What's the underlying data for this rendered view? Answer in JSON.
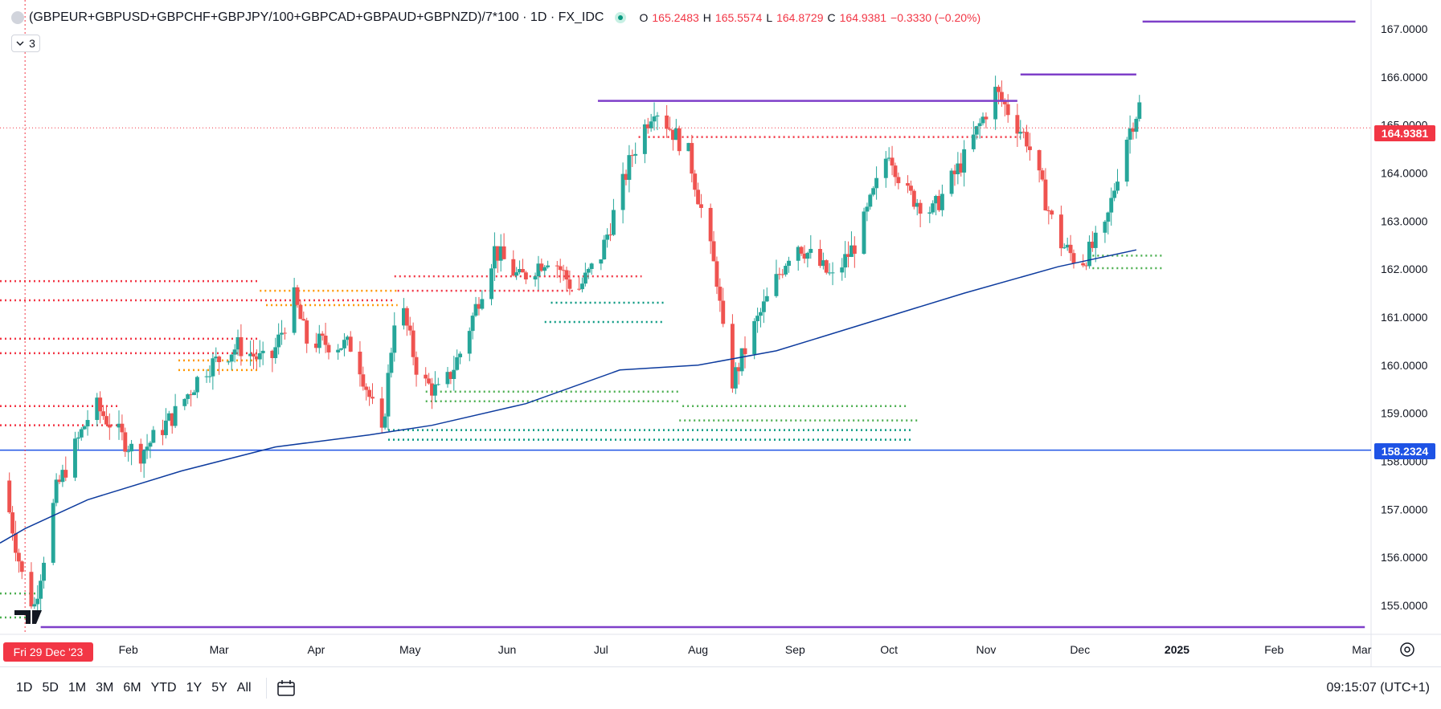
{
  "header": {
    "symbol": "(GBPEUR+GBPUSD+GBPCHF+GBPJPY/100+GBPCAD+GBPAUD+GBPNZD)/7*100 · 1D · FX_IDC",
    "ohlc": [
      {
        "key": "O",
        "value": "165.2483"
      },
      {
        "key": "H",
        "value": "165.5574"
      },
      {
        "key": "L",
        "value": "164.8729"
      },
      {
        "key": "C",
        "value": "164.9381"
      }
    ],
    "change": "−0.3330 (−0.20%)",
    "indicator_count": "3"
  },
  "price_tags": {
    "last": "164.9381",
    "hline": "158.2324"
  },
  "crosshair_date": "Fri 29 Dec '23",
  "time_axis": [
    {
      "label": "Feb",
      "day": 33
    },
    {
      "label": "Mar",
      "day": 62
    },
    {
      "label": "Apr",
      "day": 93
    },
    {
      "label": "May",
      "day": 123
    },
    {
      "label": "Jun",
      "day": 154
    },
    {
      "label": "Jul",
      "day": 184
    },
    {
      "label": "Aug",
      "day": 215
    },
    {
      "label": "Sep",
      "day": 246
    },
    {
      "label": "Oct",
      "day": 276
    },
    {
      "label": "Nov",
      "day": 307
    },
    {
      "label": "Dec",
      "day": 337
    },
    {
      "label": "2025",
      "day": 368
    },
    {
      "label": "Feb",
      "day": 399
    },
    {
      "label": "Mar",
      "day": 427
    }
  ],
  "price_axis": [
    "167.0000",
    "166.0000",
    "165.0000",
    "164.0000",
    "163.0000",
    "162.0000",
    "161.0000",
    "160.0000",
    "159.0000",
    "158.0000",
    "157.0000",
    "156.0000",
    "155.0000"
  ],
  "timeframes": [
    "1D",
    "5D",
    "1M",
    "3M",
    "6M",
    "YTD",
    "1Y",
    "5Y",
    "All"
  ],
  "clock": "09:15:07 (UTC+1)",
  "colors": {
    "up": "#26a69a",
    "down": "#ef5350",
    "ma": "#0d3b9e",
    "hline": "#1e53e5",
    "level": "#7e3fc9",
    "last_price": "#f23645"
  },
  "chart_data": {
    "type": "candlestick",
    "x_unit": "days since 2023-12-29",
    "ylim": [
      154.4,
      167.6
    ],
    "xlim": [
      -8,
      430
    ],
    "last_price": 164.9381,
    "last_day": 357,
    "anchors": [
      [
        -7,
        157.6
      ],
      [
        0,
        155.3
      ],
      [
        3,
        155.0
      ],
      [
        10,
        157.4
      ],
      [
        22,
        159.2
      ],
      [
        36,
        158.1
      ],
      [
        48,
        159.0
      ],
      [
        57,
        159.9
      ],
      [
        68,
        160.4
      ],
      [
        78,
        160.0
      ],
      [
        86,
        161.4
      ],
      [
        90,
        160.5
      ],
      [
        105,
        160.4
      ],
      [
        114,
        158.5
      ],
      [
        119,
        161.6
      ],
      [
        126,
        159.7
      ],
      [
        133,
        159.4
      ],
      [
        140,
        160.4
      ],
      [
        150,
        162.4
      ],
      [
        158,
        161.8
      ],
      [
        168,
        162.3
      ],
      [
        176,
        161.5
      ],
      [
        184,
        162.3
      ],
      [
        194,
        164.4
      ],
      [
        201,
        165.4
      ],
      [
        212,
        164.4
      ],
      [
        221,
        161.8
      ],
      [
        225,
        159.5
      ],
      [
        233,
        160.8
      ],
      [
        246,
        162.6
      ],
      [
        258,
        161.8
      ],
      [
        266,
        162.6
      ],
      [
        276,
        164.5
      ],
      [
        281,
        163.6
      ],
      [
        290,
        163.2
      ],
      [
        300,
        164.3
      ],
      [
        310,
        165.7
      ],
      [
        320,
        164.7
      ],
      [
        330,
        162.6
      ],
      [
        337,
        162.1
      ],
      [
        345,
        162.8
      ],
      [
        351,
        164.6
      ],
      [
        356,
        165.4
      ],
      [
        357,
        164.94
      ]
    ],
    "ma200": [
      [
        -8,
        156.3
      ],
      [
        0,
        156.6
      ],
      [
        20,
        157.2
      ],
      [
        50,
        157.8
      ],
      [
        80,
        158.3
      ],
      [
        110,
        158.55
      ],
      [
        130,
        158.75
      ],
      [
        160,
        159.2
      ],
      [
        190,
        159.9
      ],
      [
        215,
        160.0
      ],
      [
        240,
        160.3
      ],
      [
        270,
        160.9
      ],
      [
        300,
        161.5
      ],
      [
        330,
        162.05
      ],
      [
        355,
        162.4
      ]
    ],
    "resistance_levels": [
      {
        "d1": 183,
        "d2": 317,
        "p": 165.5
      },
      {
        "d1": 318,
        "d2": 355,
        "p": 166.05
      },
      {
        "d1": 357,
        "d2": 425,
        "p": 167.15
      },
      {
        "d1": 5,
        "d2": 428,
        "p": 154.55
      }
    ],
    "horizontal_line": 158.2324,
    "dotted_levels": [
      {
        "d1": -8,
        "d2": 75,
        "p": 161.75,
        "c": "red"
      },
      {
        "d1": -8,
        "d2": 118,
        "p": 161.35,
        "c": "red"
      },
      {
        "d1": -8,
        "d2": 75,
        "p": 160.55,
        "c": "red"
      },
      {
        "d1": -8,
        "d2": 75,
        "p": 160.25,
        "c": "red"
      },
      {
        "d1": -8,
        "d2": 30,
        "p": 159.15,
        "c": "red"
      },
      {
        "d1": -8,
        "d2": 30,
        "p": 158.75,
        "c": "red"
      },
      {
        "d1": 75,
        "d2": 119,
        "p": 161.55,
        "c": "orange"
      },
      {
        "d1": 77,
        "d2": 119,
        "p": 161.25,
        "c": "orange"
      },
      {
        "d1": 49,
        "d2": 75,
        "p": 160.1,
        "c": "orange"
      },
      {
        "d1": 49,
        "d2": 75,
        "p": 159.9,
        "c": "orange"
      },
      {
        "d1": 118,
        "d2": 197,
        "p": 161.85,
        "c": "red"
      },
      {
        "d1": 119,
        "d2": 176,
        "p": 161.55,
        "c": "red"
      },
      {
        "d1": 196,
        "d2": 318,
        "p": 164.75,
        "c": "red"
      },
      {
        "d1": 168,
        "d2": 204,
        "p": 161.3,
        "c": "teal"
      },
      {
        "d1": 166,
        "d2": 204,
        "p": 160.9,
        "c": "teal"
      },
      {
        "d1": 128,
        "d2": 209,
        "p": 159.45,
        "c": "green"
      },
      {
        "d1": 128,
        "d2": 209,
        "p": 159.25,
        "c": "green"
      },
      {
        "d1": 116,
        "d2": 283,
        "p": 158.65,
        "c": "teal"
      },
      {
        "d1": 116,
        "d2": 283,
        "p": 158.45,
        "c": "teal"
      },
      {
        "d1": 210,
        "d2": 282,
        "p": 159.15,
        "c": "green"
      },
      {
        "d1": 209,
        "d2": 285,
        "p": 158.85,
        "c": "green"
      },
      {
        "d1": 341,
        "d2": 364,
        "p": 162.28,
        "c": "green"
      },
      {
        "d1": 341,
        "d2": 364,
        "p": 162.02,
        "c": "green"
      },
      {
        "d1": -8,
        "d2": 4,
        "p": 155.25,
        "c": "green"
      },
      {
        "d1": -8,
        "d2": 4,
        "p": 154.75,
        "c": "green"
      }
    ]
  }
}
